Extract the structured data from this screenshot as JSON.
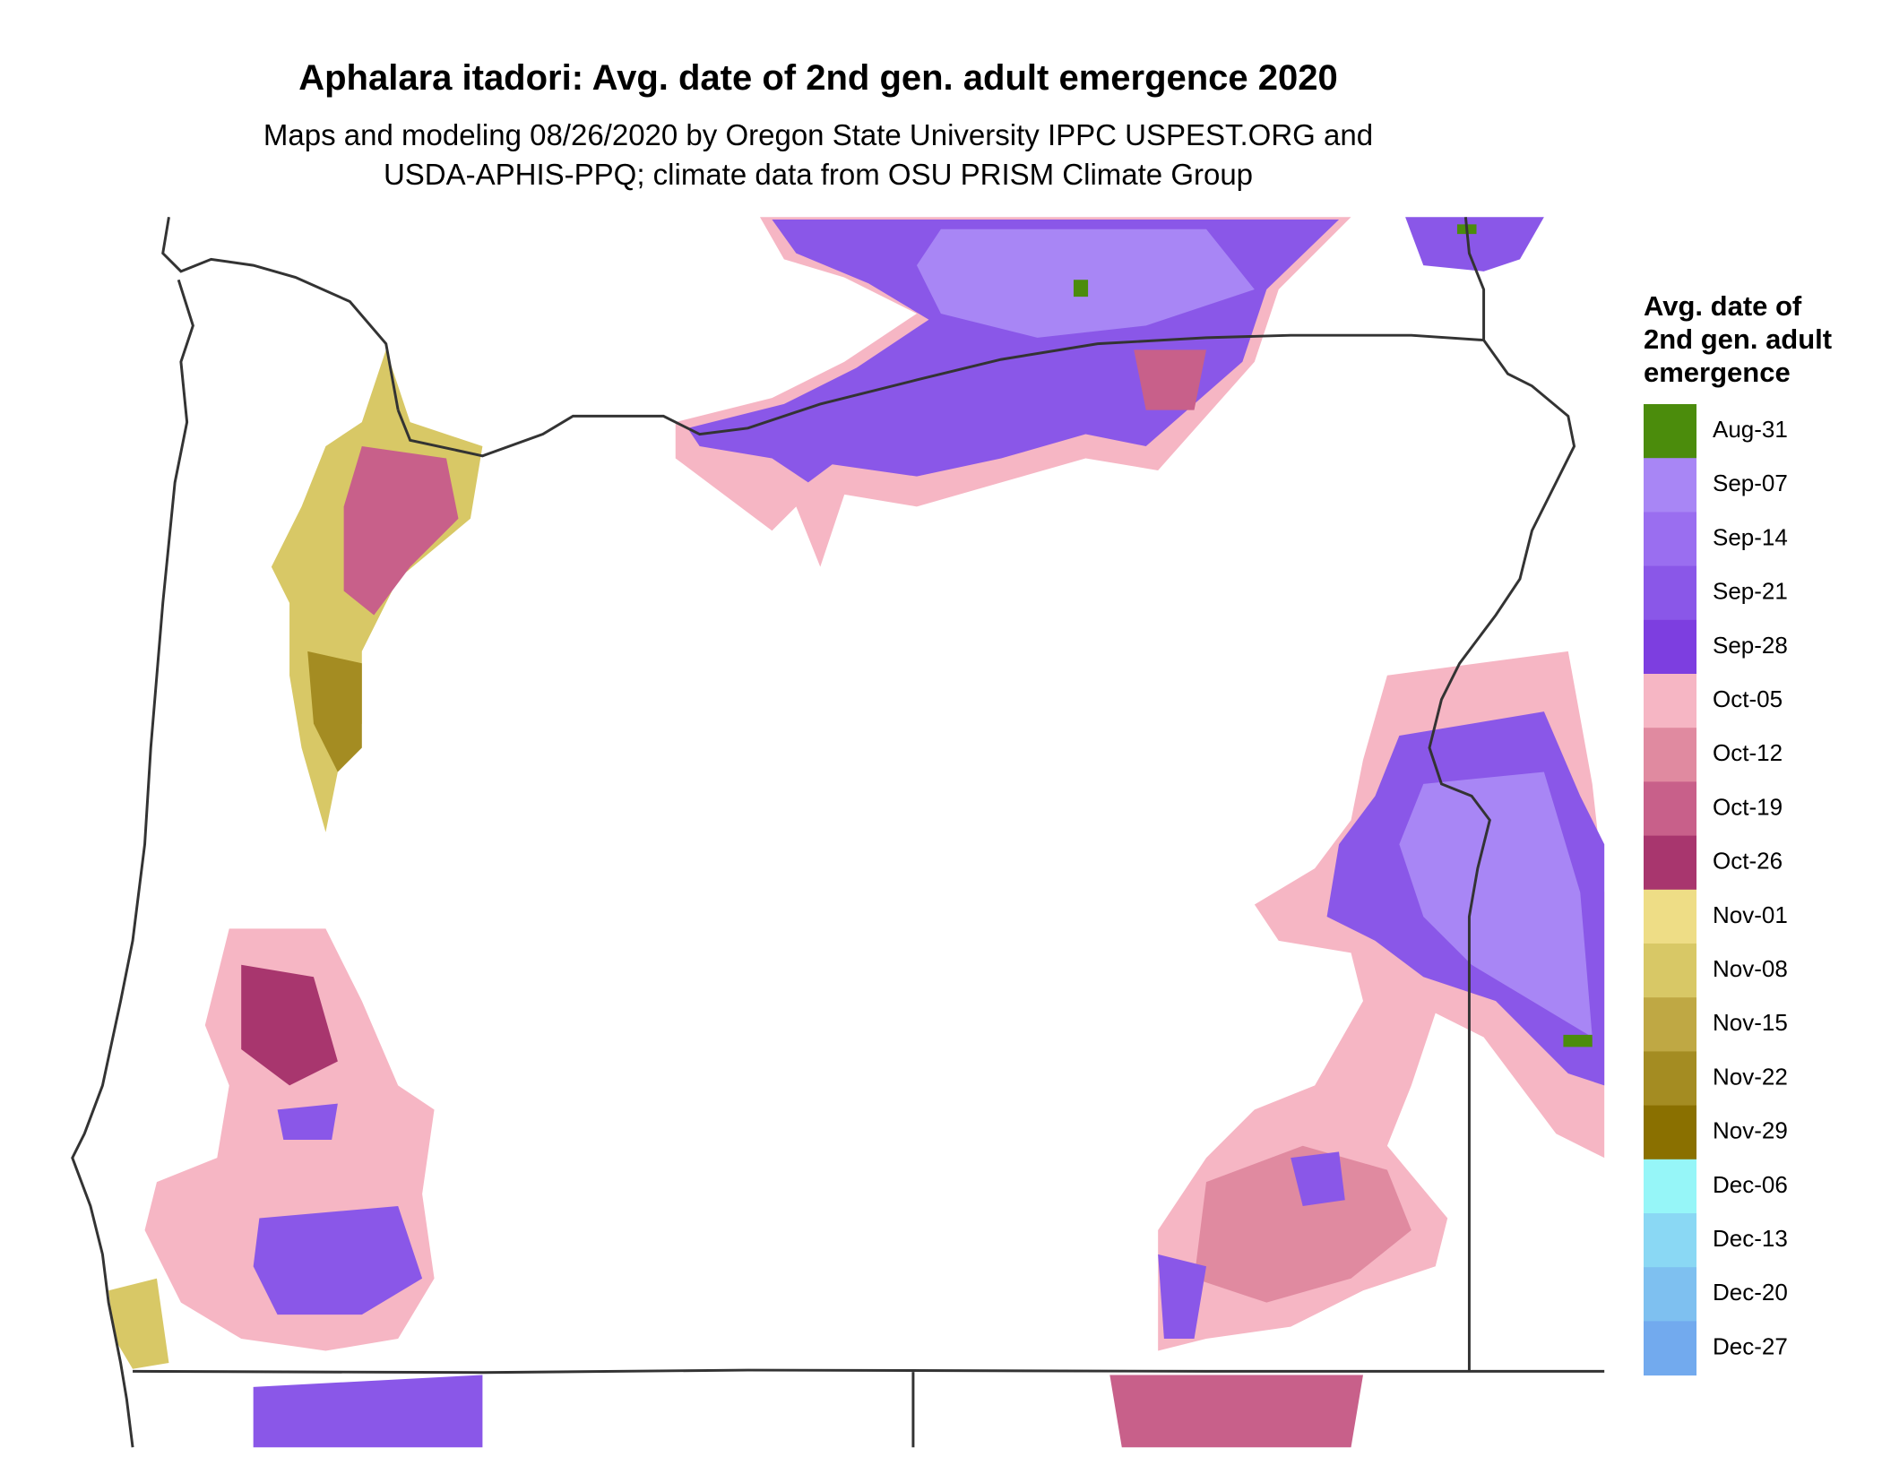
{
  "title": "Aphalara itadori: Avg. date of 2nd gen. adult emergence 2020",
  "subtitle_lines": [
    "Maps and modeling 08/26/2020 by Oregon State University IPPC USPEST.ORG and",
    "USDA-APHIS-PPQ; climate data from OSU PRISM Climate Group"
  ],
  "legend": {
    "title_lines": [
      "Avg. date of",
      "2nd gen. adult",
      "emergence"
    ],
    "items": [
      {
        "label": "Aug-31",
        "color": "#4b8c0c"
      },
      {
        "label": "Sep-07",
        "color": "#a886f5"
      },
      {
        "label": "Sep-14",
        "color": "#9a6ef0"
      },
      {
        "label": "Sep-21",
        "color": "#8a57e8"
      },
      {
        "label": "Sep-28",
        "color": "#7d3ee0"
      },
      {
        "label": "Oct-05",
        "color": "#f6b6c4"
      },
      {
        "label": "Oct-12",
        "color": "#e08aa0"
      },
      {
        "label": "Oct-19",
        "color": "#c8608a"
      },
      {
        "label": "Oct-26",
        "color": "#a8366e"
      },
      {
        "label": "Nov-01",
        "color": "#eedd86"
      },
      {
        "label": "Nov-08",
        "color": "#d8c866"
      },
      {
        "label": "Nov-15",
        "color": "#bfa844"
      },
      {
        "label": "Nov-22",
        "color": "#a48c22"
      },
      {
        "label": "Nov-29",
        "color": "#8a7000"
      },
      {
        "label": "Dec-06",
        "color": "#96f6f8"
      },
      {
        "label": "Dec-13",
        "color": "#8ad8f4"
      },
      {
        "label": "Dec-20",
        "color": "#7ec0f0"
      },
      {
        "label": "Dec-27",
        "color": "#72aaee"
      }
    ]
  }
}
